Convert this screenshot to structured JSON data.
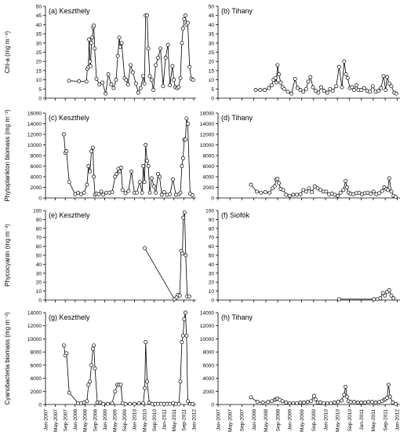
{
  "x_tick_labels": [
    "Jan-2007",
    "May-2007",
    "Sep-2007",
    "Jan-2008",
    "May-2008",
    "Sep-2008",
    "Jan-2009",
    "May-2009",
    "Sep-2009",
    "Jan-2010",
    "May-2010",
    "Sep-2010",
    "Jan-2011",
    "May-2011",
    "Sep-2011",
    "Jan-2012"
  ],
  "chart_data": [
    {
      "type": "line",
      "title": "(a) Keszthely",
      "ylabel": "Chl-a (mg m⁻³)",
      "ylim": [
        0,
        50
      ],
      "yticks": [
        0,
        5,
        10,
        15,
        20,
        25,
        30,
        35,
        40,
        45,
        50
      ],
      "series": [
        {
          "x": [
            2007.79,
            2008.13,
            2008.38,
            2008.41,
            2008.45,
            2008.47,
            2008.5,
            2008.52,
            2008.55,
            2008.58,
            2008.61,
            2008.63,
            2008.66,
            2008.72,
            2008.82,
            2008.92,
            2009.03,
            2009.12,
            2009.22,
            2009.3,
            2009.38,
            2009.44,
            2009.49,
            2009.52,
            2009.57,
            2009.67,
            2009.72,
            2009.78,
            2009.87,
            2009.95,
            2010.05,
            2010.13,
            2010.21,
            2010.3,
            2010.34,
            2010.38,
            2010.43,
            2010.47,
            2010.52,
            2010.58,
            2010.64,
            2010.72,
            2010.8,
            2010.88,
            2010.97,
            2011.05,
            2011.13,
            2011.2,
            2011.28,
            2011.33,
            2011.38,
            2011.44,
            2011.49,
            2011.55,
            2011.6,
            2011.64,
            2011.68,
            2011.72,
            2011.76,
            2011.8,
            2011.86,
            2011.92,
            2011.98
          ],
          "y": [
            9.5,
            9.2,
            9.0,
            16.0,
            17.0,
            32.0,
            20.0,
            17.5,
            30.0,
            33.0,
            38.5,
            39.5,
            27.0,
            10.5,
            7.5,
            8.5,
            2.5,
            13.0,
            7.5,
            5.5,
            10.0,
            23.0,
            33.0,
            28.0,
            30.0,
            11.0,
            10.0,
            7.5,
            18.0,
            14.0,
            8.0,
            3.0,
            5.5,
            12.0,
            8.0,
            45.0,
            45.0,
            27.0,
            12.0,
            10.0,
            4.5,
            18.0,
            22.0,
            27.0,
            6.5,
            22.0,
            29.0,
            7.0,
            17.5,
            10.0,
            6.0,
            5.5,
            6.0,
            11.0,
            30.0,
            38.0,
            43.0,
            45.0,
            40.0,
            41.0,
            17.0,
            10.5,
            10.0
          ]
        }
      ]
    },
    {
      "type": "line",
      "title": "(b) Tihany",
      "ylim": [
        0,
        50
      ],
      "yticks": [
        0,
        5,
        10,
        15,
        20,
        25,
        30,
        35,
        40,
        45,
        50
      ],
      "series": [
        {
          "x": [
            2008.05,
            2008.18,
            2008.3,
            2008.42,
            2008.5,
            2008.55,
            2008.6,
            2008.63,
            2008.66,
            2008.7,
            2008.75,
            2008.8,
            2008.85,
            2008.95,
            2009.05,
            2009.15,
            2009.22,
            2009.3,
            2009.38,
            2009.46,
            2009.52,
            2009.58,
            2009.65,
            2009.72,
            2009.8,
            2009.88,
            2009.96,
            2010.05,
            2010.13,
            2010.2,
            2010.3,
            2010.38,
            2010.46,
            2010.52,
            2010.57,
            2010.62,
            2010.68,
            2010.74,
            2010.8,
            2010.86,
            2010.92,
            2011.0,
            2011.08,
            2011.16,
            2011.24,
            2011.32,
            2011.4,
            2011.48,
            2011.55,
            2011.62,
            2011.68,
            2011.72,
            2011.78,
            2011.84,
            2011.92,
            2011.98
          ],
          "y": [
            4.5,
            4.5,
            4.5,
            5.5,
            7.0,
            10.0,
            11.0,
            8.5,
            18.0,
            13.0,
            8.5,
            6.0,
            5.0,
            3.5,
            2.5,
            10.5,
            5.5,
            4.5,
            3.5,
            5.0,
            9.0,
            11.5,
            6.0,
            4.0,
            3.0,
            6.0,
            4.0,
            3.0,
            5.0,
            4.0,
            6.5,
            17.0,
            6.0,
            20.0,
            13.0,
            11.0,
            5.5,
            6.0,
            4.5,
            7.0,
            4.5,
            4.5,
            5.5,
            4.0,
            3.5,
            6.5,
            3.5,
            4.0,
            5.5,
            12.0,
            4.5,
            11.5,
            8.0,
            6.5,
            3.0,
            2.5
          ]
        }
      ]
    },
    {
      "type": "line",
      "title": "(c) Keszthely",
      "ylabel": "Phytoplankton biomass (mg m⁻³)",
      "ylim": [
        0,
        16000
      ],
      "yticks": [
        0,
        2000,
        4000,
        6000,
        8000,
        10000,
        12000,
        14000,
        16000
      ],
      "series": [
        {
          "x": [
            2007.62,
            2007.67,
            2007.71,
            2007.8,
            2008.0,
            2008.1,
            2008.2,
            2008.3,
            2008.4,
            2008.45,
            2008.5,
            2008.55,
            2008.6,
            2008.63,
            2008.67,
            2008.72,
            2008.8,
            2008.88,
            2008.95,
            2009.05,
            2009.15,
            2009.25,
            2009.35,
            2009.4,
            2009.46,
            2009.5,
            2009.55,
            2009.6,
            2009.7,
            2009.8,
            2009.9,
            2010.0,
            2010.08,
            2010.18,
            2010.26,
            2010.3,
            2010.34,
            2010.38,
            2010.43,
            2010.47,
            2010.52,
            2010.58,
            2010.66,
            2010.72,
            2010.8,
            2010.85,
            2010.92,
            2011.0,
            2011.1,
            2011.2,
            2011.3,
            2011.4,
            2011.5,
            2011.55,
            2011.6,
            2011.64,
            2011.68,
            2011.72,
            2011.76,
            2011.8,
            2011.88,
            2011.96
          ],
          "y": [
            12000,
            8500,
            8800,
            3000,
            700,
            1000,
            700,
            1000,
            2500,
            6000,
            5000,
            8800,
            9500,
            4000,
            600,
            800,
            700,
            1200,
            600,
            1000,
            1000,
            1100,
            4000,
            4500,
            5500,
            5000,
            5700,
            1500,
            900,
            1300,
            5000,
            1000,
            1000,
            3000,
            1000,
            6000,
            3000,
            10000,
            7000,
            6000,
            1000,
            3700,
            2200,
            1000,
            4500,
            4000,
            600,
            1100,
            600,
            700,
            3500,
            600,
            700,
            1000,
            6000,
            7500,
            11000,
            11000,
            15000,
            14000,
            800,
            500
          ]
        }
      ]
    },
    {
      "type": "line",
      "title": "(d) Tihany",
      "ylim": [
        0,
        16000
      ],
      "yticks": [
        0,
        2000,
        4000,
        6000,
        8000,
        10000,
        12000,
        14000,
        16000
      ],
      "series": [
        {
          "x": [
            2007.92,
            2008.08,
            2008.2,
            2008.32,
            2008.44,
            2008.52,
            2008.58,
            2008.62,
            2008.66,
            2008.7,
            2008.75,
            2008.82,
            2008.9,
            2009.0,
            2009.1,
            2009.2,
            2009.3,
            2009.38,
            2009.46,
            2009.54,
            2009.62,
            2009.7,
            2009.78,
            2009.86,
            2009.94,
            2010.02,
            2010.1,
            2010.18,
            2010.26,
            2010.34,
            2010.42,
            2010.5,
            2010.56,
            2010.6,
            2010.64,
            2010.7,
            2010.78,
            2010.86,
            2010.94,
            2011.02,
            2011.1,
            2011.18,
            2011.26,
            2011.34,
            2011.42,
            2011.5,
            2011.58,
            2011.64,
            2011.7,
            2011.74,
            2011.78,
            2011.84,
            2011.9,
            2011.96
          ],
          "y": [
            2500,
            1200,
            1000,
            1100,
            1000,
            1800,
            2200,
            3500,
            3600,
            2800,
            1700,
            1500,
            600,
            400,
            600,
            600,
            700,
            1500,
            1200,
            1800,
            1100,
            2200,
            1800,
            1500,
            1200,
            1200,
            700,
            800,
            600,
            400,
            1000,
            1500,
            3200,
            2000,
            1000,
            800,
            700,
            900,
            1000,
            700,
            900,
            1000,
            800,
            1200,
            700,
            900,
            1300,
            2000,
            1700,
            1500,
            3700,
            1200,
            400,
            200
          ]
        }
      ]
    },
    {
      "type": "line",
      "title": "(e) Keszthely",
      "ylabel": "Phycocyanin (mg m⁻³)",
      "ylim": [
        0,
        100
      ],
      "yticks": [
        0,
        10,
        20,
        30,
        40,
        50,
        60,
        70,
        80,
        90,
        100
      ],
      "series": [
        {
          "x": [
            2010.35,
            2011.35,
            2011.42,
            2011.47,
            2011.53,
            2011.58,
            2011.62,
            2011.65,
            2011.69,
            2011.73,
            2011.78,
            2011.85
          ],
          "y": [
            58,
            1,
            3,
            6,
            5,
            55,
            52,
            92,
            98,
            50,
            4,
            4
          ]
        }
      ]
    },
    {
      "type": "line",
      "title": "(f) Siofók",
      "ylim": [
        0,
        100
      ],
      "yticks": [
        0,
        10,
        20,
        30,
        40,
        50,
        60,
        70,
        80,
        90,
        100
      ],
      "series": [
        {
          "x": [
            2010.38,
            2011.35,
            2011.45,
            2011.53,
            2011.6,
            2011.66,
            2011.72,
            2011.78,
            2011.84,
            2011.9
          ],
          "y": [
            1,
            1,
            1,
            2,
            8,
            5,
            9,
            11,
            5,
            2
          ]
        }
      ]
    },
    {
      "type": "line",
      "title": "(g) Keszthely",
      "ylabel": "Cyanobacteria biomass (mg m⁻³)",
      "ylim": [
        0,
        14000
      ],
      "yticks": [
        0,
        2000,
        4000,
        6000,
        8000,
        10000,
        12000,
        14000
      ],
      "series": [
        {
          "x": [
            2007.62,
            2007.67,
            2007.71,
            2007.8,
            2008.1,
            2008.2,
            2008.3,
            2008.4,
            2008.45,
            2008.5,
            2008.55,
            2008.6,
            2008.63,
            2008.67,
            2008.75,
            2008.85,
            2008.95,
            2009.1,
            2009.25,
            2009.35,
            2009.42,
            2009.48,
            2009.54,
            2009.6,
            2009.7,
            2009.85,
            2010.0,
            2010.15,
            2010.3,
            2010.35,
            2010.38,
            2010.43,
            2010.5,
            2010.6,
            2010.7,
            2010.8,
            2010.9,
            2011.0,
            2011.1,
            2011.2,
            2011.3,
            2011.4,
            2011.5,
            2011.55,
            2011.6,
            2011.64,
            2011.68,
            2011.72,
            2011.76,
            2011.8,
            2011.88,
            2011.96
          ],
          "y": [
            9000,
            7500,
            7800,
            1800,
            200,
            200,
            300,
            500,
            3000,
            3500,
            6000,
            8500,
            9000,
            5500,
            300,
            300,
            100,
            100,
            200,
            2000,
            3000,
            3000,
            3000,
            200,
            100,
            100,
            100,
            200,
            200,
            2500,
            9500,
            3500,
            300,
            100,
            100,
            100,
            100,
            100,
            100,
            100,
            200,
            100,
            100,
            3500,
            9500,
            10500,
            13000,
            14000,
            10500,
            500,
            100,
            100
          ]
        }
      ]
    },
    {
      "type": "line",
      "title": "(h) Tihany",
      "ylim": [
        0,
        14000
      ],
      "yticks": [
        0,
        2000,
        4000,
        6000,
        8000,
        10000,
        12000,
        14000
      ],
      "series": [
        {
          "x": [
            2007.92,
            2008.1,
            2008.25,
            2008.4,
            2008.5,
            2008.58,
            2008.62,
            2008.66,
            2008.72,
            2008.8,
            2008.9,
            2009.0,
            2009.1,
            2009.2,
            2009.3,
            2009.4,
            2009.5,
            2009.6,
            2009.68,
            2009.72,
            2009.78,
            2009.86,
            2009.95,
            2010.05,
            2010.15,
            2010.25,
            2010.35,
            2010.45,
            2010.52,
            2010.56,
            2010.6,
            2010.64,
            2010.7,
            2010.8,
            2010.9,
            2011.0,
            2011.1,
            2011.2,
            2011.3,
            2011.4,
            2011.5,
            2011.58,
            2011.64,
            2011.68,
            2011.72,
            2011.76,
            2011.8,
            2011.88,
            2011.96
          ],
          "y": [
            1100,
            400,
            300,
            400,
            500,
            700,
            800,
            900,
            700,
            500,
            300,
            200,
            200,
            200,
            300,
            300,
            400,
            500,
            1300,
            800,
            300,
            300,
            200,
            200,
            200,
            300,
            400,
            600,
            1500,
            2700,
            1200,
            500,
            400,
            400,
            300,
            300,
            300,
            400,
            400,
            300,
            400,
            500,
            700,
            800,
            1000,
            3000,
            1200,
            300,
            100
          ]
        }
      ]
    }
  ]
}
